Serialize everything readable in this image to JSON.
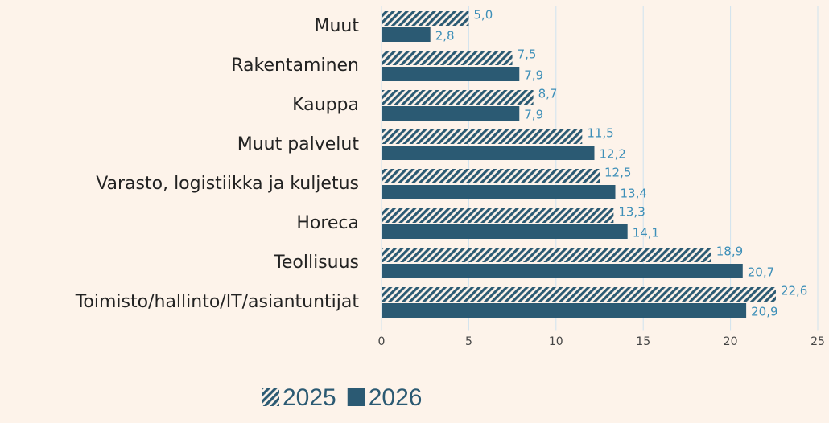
{
  "chart_data": {
    "type": "bar",
    "orientation": "horizontal",
    "categories": [
      "Muut",
      "Rakentaminen",
      "Kauppa",
      "Muut palvelut",
      "Varasto, logistiikka ja kuljetus",
      "Horeca",
      "Teollisuus",
      "Toimisto/hallinto/IT/asiantuntijat"
    ],
    "series": [
      {
        "name": "2025",
        "color": "#2b5a73",
        "pattern": "hatch",
        "values": [
          5.0,
          7.5,
          8.7,
          11.5,
          12.5,
          13.3,
          18.9,
          22.6
        ],
        "value_labels": [
          "5,0",
          "7,5",
          "8,7",
          "11,5",
          "12,5",
          "13,3",
          "18,9",
          "22,6"
        ]
      },
      {
        "name": "2026",
        "color": "#2b5a73",
        "pattern": "solid",
        "values": [
          2.8,
          7.9,
          7.9,
          12.2,
          13.4,
          14.1,
          20.7,
          20.9
        ],
        "value_labels": [
          "2,8",
          "7,9",
          "7,9",
          "12,2",
          "13,4",
          "14,1",
          "20,7",
          "20,9"
        ]
      }
    ],
    "xlim": [
      0,
      25
    ],
    "xticks": [
      0,
      5,
      10,
      15,
      20,
      25
    ],
    "grid": true,
    "legend": "bottom"
  }
}
